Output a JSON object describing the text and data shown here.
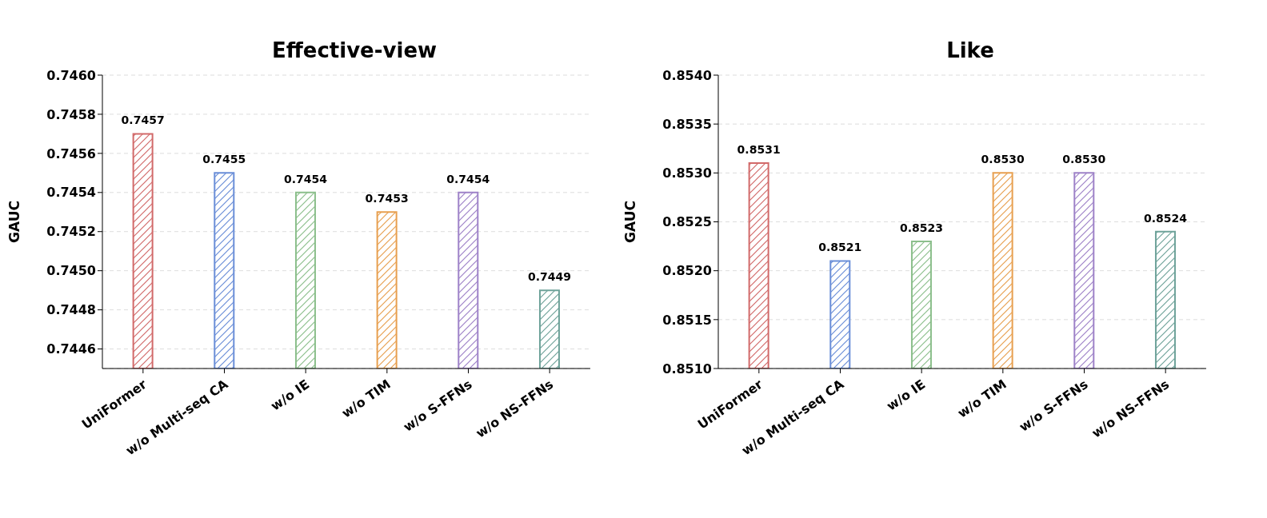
{
  "chart_data": [
    {
      "type": "bar",
      "title": "Effective-view",
      "ylabel": "GAUC",
      "categories": [
        "UniFormer",
        "w/o Multi-seq CA",
        "w/o IE",
        "w/o TIM",
        "w/o S-FFNs",
        "w/o NS-FFNs"
      ],
      "values": [
        0.7457,
        0.7455,
        0.7454,
        0.7453,
        0.7454,
        0.7449
      ],
      "colors": [
        "#d26a6a",
        "#6a8ed8",
        "#8cbf8c",
        "#e8a050",
        "#9e82c8",
        "#6fa39a"
      ],
      "value_labels": [
        "0.7457",
        "0.7455",
        "0.7454",
        "0.7453",
        "0.7454",
        "0.7449"
      ],
      "ylim": [
        0.7445,
        0.746
      ],
      "yticks": [
        {
          "value": 0.7446,
          "label": "0.7446"
        },
        {
          "value": 0.7448,
          "label": "0.7448"
        },
        {
          "value": 0.745,
          "label": "0.7450"
        },
        {
          "value": 0.7452,
          "label": "0.7452"
        },
        {
          "value": 0.7454,
          "label": "0.7454"
        },
        {
          "value": 0.7456,
          "label": "0.7456"
        },
        {
          "value": 0.7458,
          "label": "0.7458"
        },
        {
          "value": 0.746,
          "label": "0.7460"
        }
      ],
      "grid": "y"
    },
    {
      "type": "bar",
      "title": "Like",
      "ylabel": "GAUC",
      "categories": [
        "UniFormer",
        "w/o Multi-seq CA",
        "w/o IE",
        "w/o TIM",
        "w/o S-FFNs",
        "w/o NS-FFNs"
      ],
      "values": [
        0.8531,
        0.8521,
        0.8523,
        0.853,
        0.853,
        0.8524
      ],
      "colors": [
        "#d26a6a",
        "#6a8ed8",
        "#8cbf8c",
        "#e8a050",
        "#9e82c8",
        "#6fa39a"
      ],
      "value_labels": [
        "0.8531",
        "0.8521",
        "0.8523",
        "0.8530",
        "0.8530",
        "0.8524"
      ],
      "ylim": [
        0.851,
        0.854
      ],
      "yticks": [
        {
          "value": 0.851,
          "label": "0.8510"
        },
        {
          "value": 0.8515,
          "label": "0.8515"
        },
        {
          "value": 0.852,
          "label": "0.8520"
        },
        {
          "value": 0.8525,
          "label": "0.8525"
        },
        {
          "value": 0.853,
          "label": "0.8530"
        },
        {
          "value": 0.8535,
          "label": "0.8535"
        },
        {
          "value": 0.854,
          "label": "0.8540"
        }
      ],
      "grid": "y"
    }
  ]
}
